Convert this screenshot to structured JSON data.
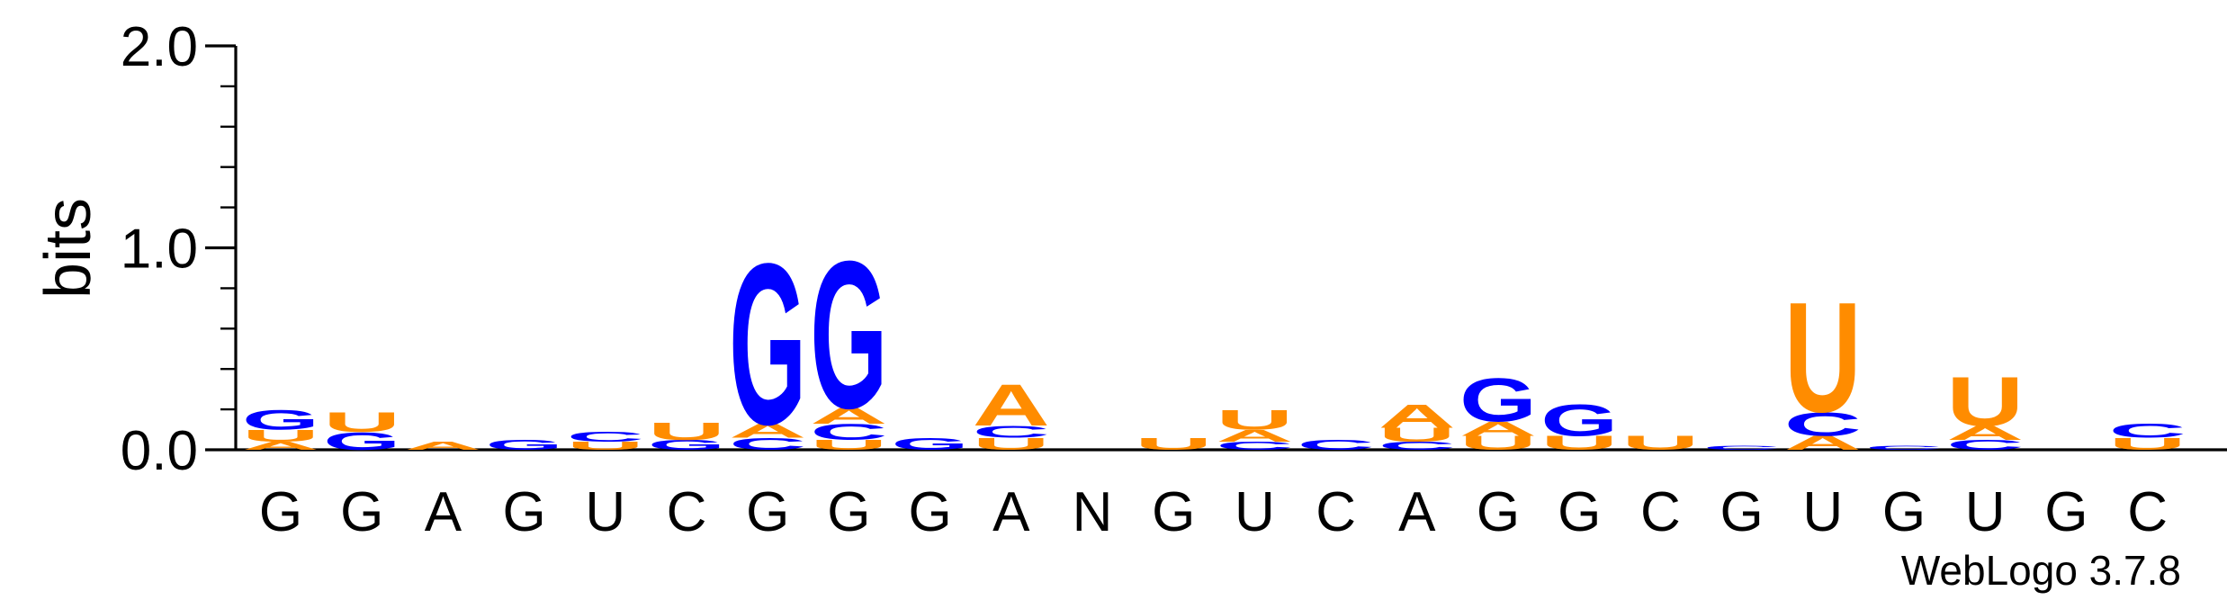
{
  "chart_data": {
    "type": "sequence-logo",
    "ylabel": "bits",
    "ylim": [
      0,
      2.0
    ],
    "yticks": [
      {
        "value": 0.0,
        "label": "0.0"
      },
      {
        "value": 1.0,
        "label": "1.0"
      },
      {
        "value": 2.0,
        "label": "2.0"
      }
    ],
    "ytick_minor_step": 0.2,
    "colors": {
      "A": "#ff8c00",
      "U": "#ff8c00",
      "G": "#0000ff",
      "C": "#0000ff"
    },
    "credit": "WebLogo 3.7.8",
    "positions": [
      {
        "label": "G",
        "stack": [
          [
            "A",
            0.04
          ],
          [
            "U",
            0.06
          ],
          [
            "G",
            0.1
          ]
        ]
      },
      {
        "label": "G",
        "stack": [
          [
            "G",
            0.09
          ],
          [
            "U",
            0.1
          ]
        ]
      },
      {
        "label": "A",
        "stack": [
          [
            "A",
            0.04
          ]
        ]
      },
      {
        "label": "G",
        "stack": [
          [
            "G",
            0.05
          ]
        ]
      },
      {
        "label": "U",
        "stack": [
          [
            "U",
            0.04
          ],
          [
            "C",
            0.05
          ]
        ]
      },
      {
        "label": "C",
        "stack": [
          [
            "G",
            0.05
          ],
          [
            "U",
            0.09
          ]
        ]
      },
      {
        "label": "G",
        "stack": [
          [
            "C",
            0.06
          ],
          [
            "A",
            0.07
          ],
          [
            "G",
            0.82
          ]
        ]
      },
      {
        "label": "G",
        "stack": [
          [
            "U",
            0.05
          ],
          [
            "C",
            0.08
          ],
          [
            "A",
            0.08
          ],
          [
            "G",
            0.75
          ]
        ]
      },
      {
        "label": "G",
        "stack": [
          [
            "G",
            0.06
          ]
        ]
      },
      {
        "label": "A",
        "stack": [
          [
            "U",
            0.06
          ],
          [
            "C",
            0.06
          ],
          [
            "A",
            0.21
          ]
        ]
      },
      {
        "label": "N",
        "stack": []
      },
      {
        "label": "G",
        "stack": [
          [
            "U",
            0.06
          ]
        ]
      },
      {
        "label": "U",
        "stack": [
          [
            "C",
            0.04
          ],
          [
            "A",
            0.06
          ],
          [
            "U",
            0.1
          ]
        ]
      },
      {
        "label": "C",
        "stack": [
          [
            "C",
            0.05
          ]
        ]
      },
      {
        "label": "A",
        "stack": [
          [
            "C",
            0.04
          ],
          [
            "U",
            0.07
          ],
          [
            "A",
            0.12
          ]
        ]
      },
      {
        "label": "G",
        "stack": [
          [
            "U",
            0.07
          ],
          [
            "A",
            0.07
          ],
          [
            "G",
            0.22
          ]
        ]
      },
      {
        "label": "G",
        "stack": [
          [
            "U",
            0.07
          ],
          [
            "G",
            0.16
          ]
        ]
      },
      {
        "label": "C",
        "stack": [
          [
            "U",
            0.07
          ]
        ]
      },
      {
        "label": "G",
        "stack": [
          [
            "C",
            0.02
          ]
        ]
      },
      {
        "label": "U",
        "stack": [
          [
            "A",
            0.07
          ],
          [
            "C",
            0.12
          ],
          [
            "U",
            0.56
          ]
        ]
      },
      {
        "label": "G",
        "stack": [
          [
            "C",
            0.02
          ]
        ]
      },
      {
        "label": "U",
        "stack": [
          [
            "C",
            0.05
          ],
          [
            "A",
            0.07
          ],
          [
            "U",
            0.25
          ]
        ]
      },
      {
        "label": "G",
        "stack": []
      },
      {
        "label": "C",
        "stack": [
          [
            "U",
            0.06
          ],
          [
            "C",
            0.07
          ]
        ]
      }
    ]
  }
}
